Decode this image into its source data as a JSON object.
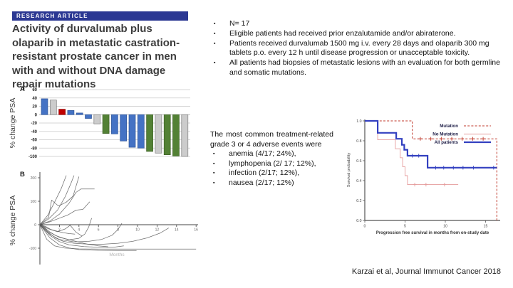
{
  "article": {
    "tag": "RESEARCH ARTICLE",
    "title": "Activity of durvalumab plus olaparib in metastatic castration-resistant prostate cancer in men with and without DNA damage repair mutations"
  },
  "key_points": [
    "N= 17",
    "Eligible patients had received prior enzalutamide and/or abiraterone.",
    "Patients received durvalumab 1500 mg i.v. every 28 days and olaparib 300 mg tablets p.o. every 12 h until disease progression or unacceptable toxicity.",
    "All patients had biopsies of metastatic lesions with an evaluation for both germline and somatic mutations."
  ],
  "adverse_events": {
    "intro": "The most common treatment-related grade 3 or 4 adverse events were",
    "items": [
      "anemia (4/17; 24%),",
      "lymphopenia (2/ 17; 12%),",
      "infection (2/17; 12%),",
      "nausea (2/17; 12%)"
    ]
  },
  "citation": "Karzai et al, Journal Immunot Cancer 2018",
  "colors": {
    "header_navy": "#2b3893",
    "bar_blue": "#4472c4",
    "bar_gray": "#cccccc",
    "bar_red": "#c00000",
    "bar_green": "#538135",
    "km_mutation_red": "#c0392b",
    "km_no_mutation_pink": "#e59c9c",
    "km_all_patients_blue": "#3340c0"
  },
  "chart_data": [
    {
      "id": "waterfall",
      "type": "bar",
      "panel_label": "A",
      "ylabel": "% change PSA",
      "ylim": [
        -100,
        60
      ],
      "yticks": [
        60,
        40,
        20,
        0,
        -20,
        -40,
        -60,
        -80,
        -100
      ],
      "grid": true,
      "palette": {
        "blue": {
          "fill": "#4472c4",
          "stroke": "#2f5597"
        },
        "gray": {
          "fill": "#cccccc",
          "stroke": "#7f7f7f"
        },
        "red": {
          "fill": "#c00000",
          "stroke": "#8b0000"
        },
        "green": {
          "fill": "#538135",
          "stroke": "#3e6127"
        }
      },
      "bars": [
        {
          "value": 38,
          "color": "blue"
        },
        {
          "value": 35,
          "color": "gray"
        },
        {
          "value": 13,
          "color": "red"
        },
        {
          "value": 10,
          "color": "blue"
        },
        {
          "value": 4,
          "color": "blue"
        },
        {
          "value": -9,
          "color": "blue"
        },
        {
          "value": -22,
          "color": "gray"
        },
        {
          "value": -45,
          "color": "green"
        },
        {
          "value": -46,
          "color": "blue"
        },
        {
          "value": -63,
          "color": "blue"
        },
        {
          "value": -78,
          "color": "blue"
        },
        {
          "value": -80,
          "color": "blue"
        },
        {
          "value": -88,
          "color": "green"
        },
        {
          "value": -92,
          "color": "gray"
        },
        {
          "value": -96,
          "color": "green"
        },
        {
          "value": -99,
          "color": "green"
        },
        {
          "value": -100,
          "color": "gray"
        }
      ]
    },
    {
      "id": "spider",
      "type": "line",
      "panel_label": "B",
      "ylabel": "% change PSA",
      "xlabel": "Months",
      "ylim": [
        -150,
        220
      ],
      "xlim": [
        0,
        16
      ],
      "yticks": [
        200,
        100,
        0,
        -100
      ],
      "xticks": [
        2,
        4,
        6,
        8,
        10,
        12,
        14,
        16
      ],
      "line_color": "#5f5f5f",
      "series": [
        [
          [
            0,
            0
          ],
          [
            0.8,
            40
          ],
          [
            1.5,
            95
          ],
          [
            2.2,
            155
          ],
          [
            2.7,
            210
          ]
        ],
        [
          [
            0,
            0
          ],
          [
            0.9,
            25
          ],
          [
            1.8,
            62
          ],
          [
            2.6,
            120
          ],
          [
            3.2,
            178
          ],
          [
            3.5,
            210
          ]
        ],
        [
          [
            0,
            0
          ],
          [
            1,
            15
          ],
          [
            2,
            45
          ],
          [
            3,
            92
          ],
          [
            3.7,
            138
          ],
          [
            4.2,
            152
          ],
          [
            5.6,
            152
          ]
        ],
        [
          [
            0,
            0
          ],
          [
            0.9,
            32
          ],
          [
            1.2,
            105
          ],
          [
            1.9,
            80
          ],
          [
            2.7,
            96
          ],
          [
            3.4,
            122
          ],
          [
            4.0,
            205
          ]
        ],
        [
          [
            0,
            0
          ],
          [
            1,
            12
          ],
          [
            2,
            28
          ],
          [
            2.9,
            42
          ],
          [
            3.7,
            62
          ],
          [
            4.4,
            65
          ],
          [
            5.1,
            98
          ]
        ],
        [
          [
            0,
            0
          ],
          [
            0.9,
            -18
          ],
          [
            1.8,
            -30
          ],
          [
            2.6,
            -18
          ],
          [
            3.1,
            -2
          ],
          [
            3.7,
            -32
          ],
          [
            4.3,
            -48
          ]
        ],
        [
          [
            0,
            0
          ],
          [
            0.5,
            -12
          ],
          [
            1,
            -32
          ],
          [
            2,
            -54
          ],
          [
            3,
            -64
          ],
          [
            4,
            -58
          ],
          [
            4.6,
            -40
          ],
          [
            5.0,
            -10
          ],
          [
            5.3,
            28
          ]
        ],
        [
          [
            0,
            0
          ],
          [
            1,
            -45
          ],
          [
            2,
            -72
          ],
          [
            3,
            -86
          ],
          [
            4.5,
            -93
          ],
          [
            6,
            -96
          ],
          [
            7.5,
            -96
          ],
          [
            8.6,
            -90
          ]
        ],
        [
          [
            0,
            0
          ],
          [
            1,
            -55
          ],
          [
            2,
            -86
          ],
          [
            3,
            -99
          ],
          [
            4,
            -106
          ],
          [
            6,
            -109
          ],
          [
            8,
            -110
          ],
          [
            9.9,
            -110
          ]
        ],
        [
          [
            0,
            0
          ],
          [
            0.8,
            -30
          ],
          [
            1.6,
            -56
          ],
          [
            2.4,
            -71
          ],
          [
            3.5,
            -79
          ],
          [
            5,
            -83
          ],
          [
            6.5,
            -83
          ],
          [
            8,
            -79
          ],
          [
            9.5,
            -71
          ],
          [
            11,
            -56
          ],
          [
            12.3,
            -36
          ],
          [
            13.2,
            -14
          ]
        ],
        [
          [
            0,
            0
          ],
          [
            1,
            -40
          ],
          [
            2,
            -63
          ],
          [
            3.5,
            -73
          ],
          [
            5,
            -71
          ],
          [
            6.3,
            -63
          ],
          [
            7.4,
            -45
          ],
          [
            8.0,
            -20
          ],
          [
            8.4,
            6
          ]
        ],
        [
          [
            0,
            0
          ],
          [
            0.7,
            -62
          ],
          [
            1.5,
            -90
          ],
          [
            2.5,
            -99
          ],
          [
            4,
            -103
          ],
          [
            6,
            -104
          ],
          [
            8,
            -104
          ],
          [
            11,
            -104
          ],
          [
            16,
            -104
          ]
        ],
        [
          [
            0,
            0
          ],
          [
            0.8,
            -25
          ],
          [
            1.6,
            -46
          ],
          [
            2.6,
            -60
          ],
          [
            3.6,
            -70
          ],
          [
            4.8,
            -82
          ],
          [
            6,
            -90
          ],
          [
            7,
            -94
          ]
        ],
        [
          [
            0,
            0
          ],
          [
            0.6,
            -8
          ],
          [
            1.1,
            -20
          ],
          [
            1.8,
            -28
          ],
          [
            2.4,
            -34
          ],
          [
            3.0,
            -38
          ],
          [
            3.6,
            -40
          ]
        ]
      ]
    },
    {
      "id": "km",
      "type": "line",
      "ylabel": "Survival probability",
      "xlabel": "Progression free survival in months from on-study date",
      "ylim": [
        0,
        1
      ],
      "xlim": [
        0,
        17
      ],
      "yticks": [
        "1.0",
        "0.8",
        "0.6",
        "0.4",
        "0.2",
        "0.0"
      ],
      "xticks": [
        0,
        5,
        10,
        15
      ],
      "legend_position": "top-right",
      "series": [
        {
          "name": "Mutation",
          "color": "#c0392b",
          "dash": "3,2.2",
          "width": 1,
          "censor": "plus",
          "points": [
            [
              0,
              1
            ],
            [
              5.9,
              1
            ],
            [
              5.9,
              0.82
            ],
            [
              16.4,
              0.82
            ],
            [
              16.4,
              0
            ]
          ],
          "censors": [
            [
              6.9,
              0.82
            ],
            [
              8.2,
              0.82
            ],
            [
              9.5,
              0.82
            ],
            [
              10.8,
              0.82
            ],
            [
              12.1,
              0.82
            ],
            [
              13.4,
              0.82
            ],
            [
              14.7,
              0.82
            ]
          ]
        },
        {
          "name": "No Mutation",
          "color": "#e59c9c",
          "dash": "",
          "width": 0.9,
          "censor": "plus",
          "points": [
            [
              0,
              1
            ],
            [
              1.6,
              1
            ],
            [
              1.6,
              0.81
            ],
            [
              3.8,
              0.81
            ],
            [
              3.8,
              0.72
            ],
            [
              4.4,
              0.72
            ],
            [
              4.4,
              0.63
            ],
            [
              4.7,
              0.63
            ],
            [
              4.7,
              0.54
            ],
            [
              5.0,
              0.54
            ],
            [
              5.0,
              0.45
            ],
            [
              5.3,
              0.45
            ],
            [
              5.3,
              0.36
            ],
            [
              11.6,
              0.36
            ]
          ],
          "censors": [
            [
              6.2,
              0.36
            ],
            [
              7.6,
              0.36
            ],
            [
              9.9,
              0.36
            ]
          ]
        },
        {
          "name": "All patients",
          "color": "#3340c0",
          "dash": "",
          "width": 2.2,
          "censor": "tick",
          "points": [
            [
              0,
              1
            ],
            [
              1.6,
              1
            ],
            [
              1.6,
              0.88
            ],
            [
              3.9,
              0.88
            ],
            [
              3.9,
              0.82
            ],
            [
              4.6,
              0.82
            ],
            [
              4.6,
              0.76
            ],
            [
              4.9,
              0.76
            ],
            [
              4.9,
              0.71
            ],
            [
              5.3,
              0.71
            ],
            [
              5.3,
              0.65
            ],
            [
              7.8,
              0.65
            ],
            [
              7.8,
              0.53
            ],
            [
              16.4,
              0.53
            ]
          ],
          "censors": [
            [
              5.9,
              0.65
            ],
            [
              6.7,
              0.65
            ],
            [
              8.8,
              0.53
            ],
            [
              9.8,
              0.53
            ],
            [
              11.0,
              0.53
            ],
            [
              12.2,
              0.53
            ],
            [
              13.5,
              0.53
            ],
            [
              16.0,
              0.53
            ]
          ]
        }
      ]
    }
  ]
}
